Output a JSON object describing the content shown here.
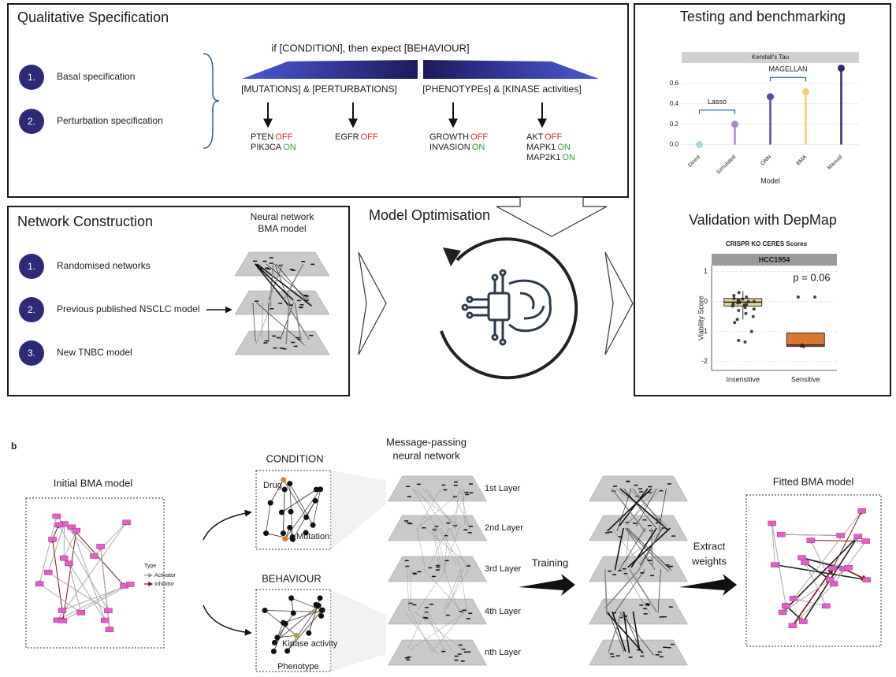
{
  "qualitative": {
    "title": "Qualitative Specification",
    "items": [
      {
        "num": "1.",
        "label": "Basal specification"
      },
      {
        "num": "2.",
        "label": "Perturbation specification"
      }
    ],
    "rule": "if [CONDITION], then expect [BEHAVIOUR]",
    "groups": [
      "[MUTATIONS] & [PERTURBATIONS]",
      "[PHENOTYPEs] & [KINASE activities]"
    ],
    "outputs": [
      [
        {
          "gene": "PTEN",
          "state": "OFF",
          "color": "#d0312d"
        },
        {
          "gene": "PIK3CA",
          "state": "ON",
          "color": "#3a9a3a"
        }
      ],
      [
        {
          "gene": "EGFR",
          "state": "OFF",
          "color": "#d0312d"
        }
      ],
      [
        {
          "gene": "GROWTH",
          "state": "OFF",
          "color": "#d0312d"
        },
        {
          "gene": "INVASION",
          "state": "ON",
          "color": "#3a9a3a"
        }
      ],
      [
        {
          "gene": "AKT",
          "state": "OFF",
          "color": "#d0312d"
        },
        {
          "gene": "MAPK1",
          "state": "ON",
          "color": "#3a9a3a"
        },
        {
          "gene": "MAP2K1",
          "state": "ON",
          "color": "#3a9a3a"
        }
      ]
    ]
  },
  "network": {
    "title": "Network Construction",
    "items": [
      {
        "num": "1.",
        "label": "Randomised networks"
      },
      {
        "num": "2.",
        "label": "Previous published NSCLC model"
      },
      {
        "num": "3.",
        "label": "New TNBC model"
      }
    ],
    "model_label": [
      "Neural network",
      "BMA model"
    ]
  },
  "optimisation": {
    "title": "Model Optimisation"
  },
  "testing": {
    "title": "Testing and benchmarking",
    "chart": {
      "type": "lollipop",
      "facet": "Kendall's Tau",
      "x_label": "Model",
      "categories": [
        "Direct",
        "Simulated",
        "GNN",
        "BMA",
        "Manual"
      ],
      "values": [
        0.0,
        0.2,
        0.47,
        0.52,
        0.75
      ],
      "colors": [
        "#a9dbe3",
        "#a88ac9",
        "#5e4b9c",
        "#f0d070",
        "#2e2a6a"
      ],
      "ylim": [
        -0.05,
        0.8
      ],
      "yticks": [
        {
          "value": 0,
          "label": "0.0"
        },
        0.2,
        0.4,
        0.6
      ],
      "brackets": [
        {
          "label": "Lasso",
          "from": 0,
          "to": 1
        },
        {
          "label": "MAGELLAN",
          "from": 2,
          "to": 3
        }
      ]
    }
  },
  "validation": {
    "title": "Validation with DepMap",
    "chart": {
      "type": "box",
      "title": "CRISPR KO CERES Scores",
      "facet": "HCC1954",
      "y_label": "Viability Score",
      "annotation": "p = 0.06",
      "categories": [
        "Insensitive",
        "Sensitive"
      ],
      "colors": [
        "#e8d49a",
        "#d9782e"
      ],
      "ylim": [
        -2.3,
        1.2
      ],
      "yticks": [
        1,
        0,
        -1,
        -2
      ],
      "boxes": [
        {
          "low": -0.6,
          "q1": -0.15,
          "median": -0.02,
          "q3": 0.1,
          "high": 0.35
        },
        {
          "low": -1.5,
          "q1": -1.5,
          "median": -1.45,
          "q3": -1.05,
          "high": -1.05
        }
      ],
      "points": [
        [
          0.3,
          0.2,
          0.15,
          0.1,
          0.08,
          0.05,
          0.02,
          0,
          0,
          -0.03,
          -0.05,
          -0.08,
          -0.1,
          -0.12,
          -0.15,
          -0.2,
          -0.25,
          -0.3,
          -0.4,
          -0.5,
          -0.6,
          -0.7,
          -1.0,
          -1.3,
          -1.35
        ],
        [
          0.15,
          0.15,
          -1.45,
          -1.48,
          -1.5
        ]
      ]
    }
  },
  "panel_b": {
    "label": "b",
    "initial": {
      "title": "Initial BMA model",
      "legend_title": "Type",
      "legend": [
        "Activator",
        "Inhibitor"
      ]
    },
    "condition": {
      "title": "CONDITION",
      "labels": [
        "Drug",
        "Mutation"
      ]
    },
    "behaviour": {
      "title": "BEHAVIOUR",
      "labels": [
        "Kinase activity",
        "Phenotype"
      ]
    },
    "mpnn": {
      "title": [
        "Message-passing",
        "neural network"
      ],
      "layers": [
        "1st Layer",
        "2nd Layer",
        "3rd Layer",
        "4th Layer",
        "nth Layer"
      ]
    },
    "training": "Training",
    "extract": [
      "Extract",
      "weights"
    ],
    "fitted": {
      "title": "Fitted BMA model"
    }
  }
}
